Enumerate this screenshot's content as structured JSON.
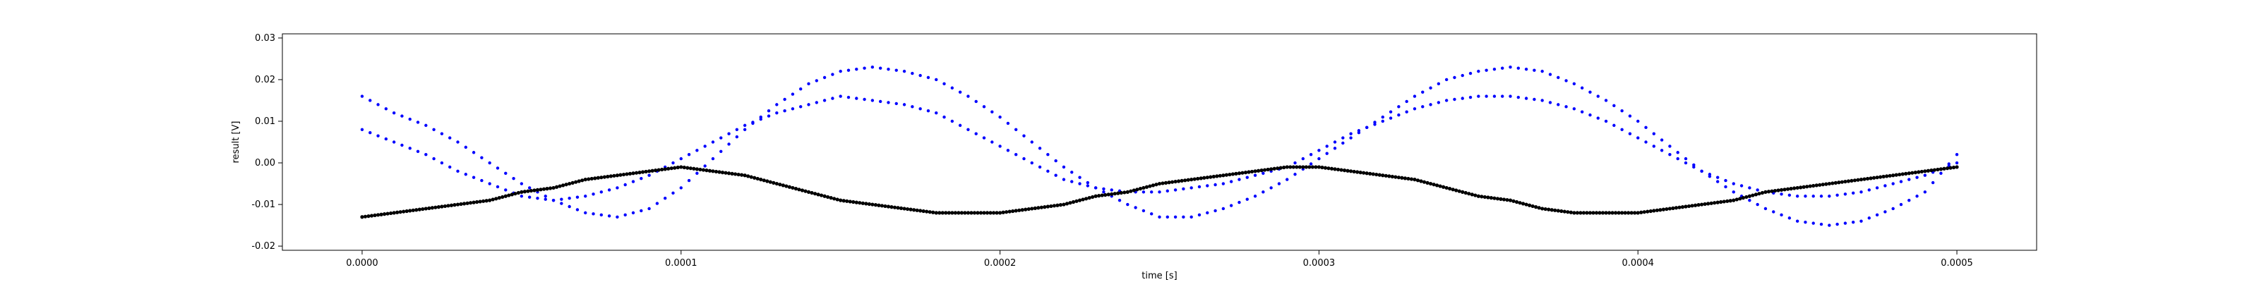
{
  "chart_data": {
    "type": "scatter",
    "title": "",
    "xlabel": "time [s]",
    "ylabel": "result [V]",
    "xlim": [
      -2.5e-05,
      0.000525
    ],
    "ylim": [
      -0.021,
      0.031
    ],
    "grid": false,
    "x_ticks": [
      0.0,
      0.0001,
      0.0002,
      0.0003,
      0.0004,
      0.0005
    ],
    "x_tick_labels": [
      "0.0000",
      "0.0001",
      "0.0002",
      "0.0003",
      "0.0004",
      "0.0005"
    ],
    "y_ticks": [
      -0.02,
      -0.01,
      0.0,
      0.01,
      0.02,
      0.03
    ],
    "y_tick_labels": [
      "-0.02",
      "-0.01",
      "0.00",
      "0.01",
      "0.02",
      "0.03"
    ],
    "series": [
      {
        "color": "#0000ff",
        "description_points": "blue scattered samples forming two interleaved sine-like bands",
        "x": [
          0.0,
          1e-05,
          2e-05,
          3e-05,
          4e-05,
          5e-05,
          6e-05,
          7e-05,
          8e-05,
          9e-05,
          0.0001,
          0.00011,
          0.00012,
          0.00013,
          0.00014,
          0.00015,
          0.00016,
          0.00017,
          0.00018,
          0.00019,
          0.0002,
          0.00021,
          0.00022,
          0.00023,
          0.00024,
          0.00025,
          0.00026,
          0.00027,
          0.00028,
          0.00029,
          0.0003,
          0.00031,
          0.00032,
          0.00033,
          0.00034,
          0.00035,
          0.00036,
          0.00037,
          0.00038,
          0.00039,
          0.0004,
          0.00041,
          0.00042,
          0.00043,
          0.00044,
          0.00045,
          0.00046,
          0.00047,
          0.00048,
          0.00049,
          0.0005
        ],
        "y": [
          0.016,
          0.012,
          0.009,
          0.005,
          0.0,
          -0.005,
          -0.009,
          -0.012,
          -0.013,
          -0.011,
          -0.006,
          0.001,
          0.008,
          0.014,
          0.019,
          0.022,
          0.023,
          0.022,
          0.02,
          0.016,
          0.011,
          0.005,
          -0.001,
          -0.006,
          -0.01,
          -0.013,
          -0.013,
          -0.011,
          -0.008,
          -0.004,
          0.001,
          0.006,
          0.011,
          0.016,
          0.02,
          0.022,
          0.023,
          0.022,
          0.019,
          0.015,
          0.01,
          0.004,
          -0.002,
          -0.007,
          -0.011,
          -0.014,
          -0.015,
          -0.014,
          -0.011,
          -0.007,
          0.002
        ]
      },
      {
        "color": "#0000ff",
        "x": [
          0.0,
          1e-05,
          2e-05,
          3e-05,
          4e-05,
          5e-05,
          6e-05,
          7e-05,
          8e-05,
          9e-05,
          0.0001,
          0.00011,
          0.00012,
          0.00013,
          0.00014,
          0.00015,
          0.00016,
          0.00017,
          0.00018,
          0.00019,
          0.0002,
          0.00021,
          0.00022,
          0.00023,
          0.00024,
          0.00025,
          0.00026,
          0.00027,
          0.00028,
          0.00029,
          0.0003,
          0.00031,
          0.00032,
          0.00033,
          0.00034,
          0.00035,
          0.00036,
          0.00037,
          0.00038,
          0.00039,
          0.0004,
          0.00041,
          0.00042,
          0.00043,
          0.00044,
          0.00045,
          0.00046,
          0.00047,
          0.00048,
          0.00049,
          0.0005
        ],
        "y": [
          0.008,
          0.005,
          0.002,
          -0.002,
          -0.005,
          -0.008,
          -0.009,
          -0.008,
          -0.006,
          -0.003,
          0.001,
          0.005,
          0.009,
          0.012,
          0.014,
          0.016,
          0.015,
          0.014,
          0.012,
          0.008,
          0.004,
          0.0,
          -0.004,
          -0.006,
          -0.007,
          -0.007,
          -0.006,
          -0.005,
          -0.003,
          -0.001,
          0.003,
          0.007,
          0.01,
          0.013,
          0.015,
          0.016,
          0.016,
          0.015,
          0.013,
          0.01,
          0.006,
          0.002,
          -0.002,
          -0.005,
          -0.007,
          -0.008,
          -0.008,
          -0.007,
          -0.005,
          -0.003,
          0.0
        ]
      },
      {
        "color": "#000000",
        "x": [
          0.0,
          1e-05,
          2e-05,
          3e-05,
          4e-05,
          5e-05,
          6e-05,
          7e-05,
          8e-05,
          9e-05,
          0.0001,
          0.00011,
          0.00012,
          0.00013,
          0.00014,
          0.00015,
          0.00016,
          0.00017,
          0.00018,
          0.00019,
          0.0002,
          0.00021,
          0.00022,
          0.00023,
          0.00024,
          0.00025,
          0.00026,
          0.00027,
          0.00028,
          0.00029,
          0.0003,
          0.00031,
          0.00032,
          0.00033,
          0.00034,
          0.00035,
          0.00036,
          0.00037,
          0.00038,
          0.00039,
          0.0004,
          0.00041,
          0.00042,
          0.00043,
          0.00044,
          0.00045,
          0.00046,
          0.00047,
          0.00048,
          0.00049,
          0.0005
        ],
        "y": [
          -0.013,
          -0.012,
          -0.011,
          -0.01,
          -0.009,
          -0.007,
          -0.006,
          -0.004,
          -0.003,
          -0.002,
          -0.001,
          -0.002,
          -0.003,
          -0.005,
          -0.007,
          -0.009,
          -0.01,
          -0.011,
          -0.012,
          -0.012,
          -0.012,
          -0.011,
          -0.01,
          -0.008,
          -0.007,
          -0.005,
          -0.004,
          -0.003,
          -0.002,
          -0.001,
          -0.001,
          -0.002,
          -0.003,
          -0.004,
          -0.006,
          -0.008,
          -0.009,
          -0.011,
          -0.012,
          -0.012,
          -0.012,
          -0.011,
          -0.01,
          -0.009,
          -0.007,
          -0.006,
          -0.005,
          -0.004,
          -0.003,
          -0.002,
          -0.001
        ]
      }
    ]
  },
  "colors": {
    "blue_series": "#0000ff",
    "black_series": "#000000",
    "axes": "#000000",
    "background": "#ffffff"
  }
}
